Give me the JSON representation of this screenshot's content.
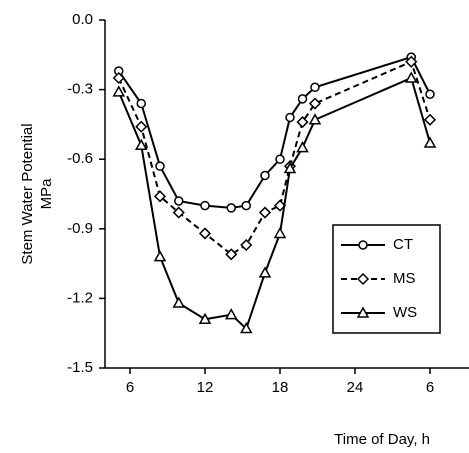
{
  "chart_data": {
    "type": "line",
    "ylabel": [
      "Stem Water Potential",
      "MPa"
    ],
    "xlabel": "Time of Day, h",
    "x": [
      5.1,
      6.9,
      8.4,
      9.9,
      12,
      14.1,
      15.3,
      16.8,
      18,
      18.8,
      19.8,
      20.8,
      28.5,
      30
    ],
    "series": [
      {
        "name": "CT",
        "color": "#000000",
        "dash": false,
        "marker": "circle",
        "values": [
          -0.22,
          -0.36,
          -0.63,
          -0.78,
          -0.8,
          -0.81,
          -0.8,
          -0.67,
          -0.6,
          -0.42,
          -0.34,
          -0.29,
          -0.16,
          -0.32
        ]
      },
      {
        "name": "MS",
        "color": "#000000",
        "dash": true,
        "marker": "diamond",
        "values": [
          -0.25,
          -0.46,
          -0.76,
          -0.83,
          -0.92,
          -1.01,
          -0.97,
          -0.83,
          -0.8,
          -0.63,
          -0.44,
          -0.36,
          -0.18,
          -0.43
        ]
      },
      {
        "name": "WS",
        "color": "#000000",
        "dash": false,
        "marker": "triangle",
        "values": [
          -0.31,
          -0.54,
          -1.02,
          -1.22,
          -1.29,
          -1.27,
          -1.33,
          -1.09,
          -0.92,
          -0.64,
          -0.55,
          -0.43,
          -0.25,
          -0.53
        ]
      }
    ],
    "xlim": [
      4,
      32
    ],
    "xticks": [
      6,
      12,
      18,
      24,
      {
        "value": 30,
        "label": "6"
      }
    ],
    "ylim": [
      -1.5,
      0
    ],
    "yticks": [
      {
        "value": 0,
        "label": "0.0"
      },
      -0.3,
      -0.6,
      -0.9,
      -1.2,
      -1.5
    ],
    "legend": "right"
  }
}
